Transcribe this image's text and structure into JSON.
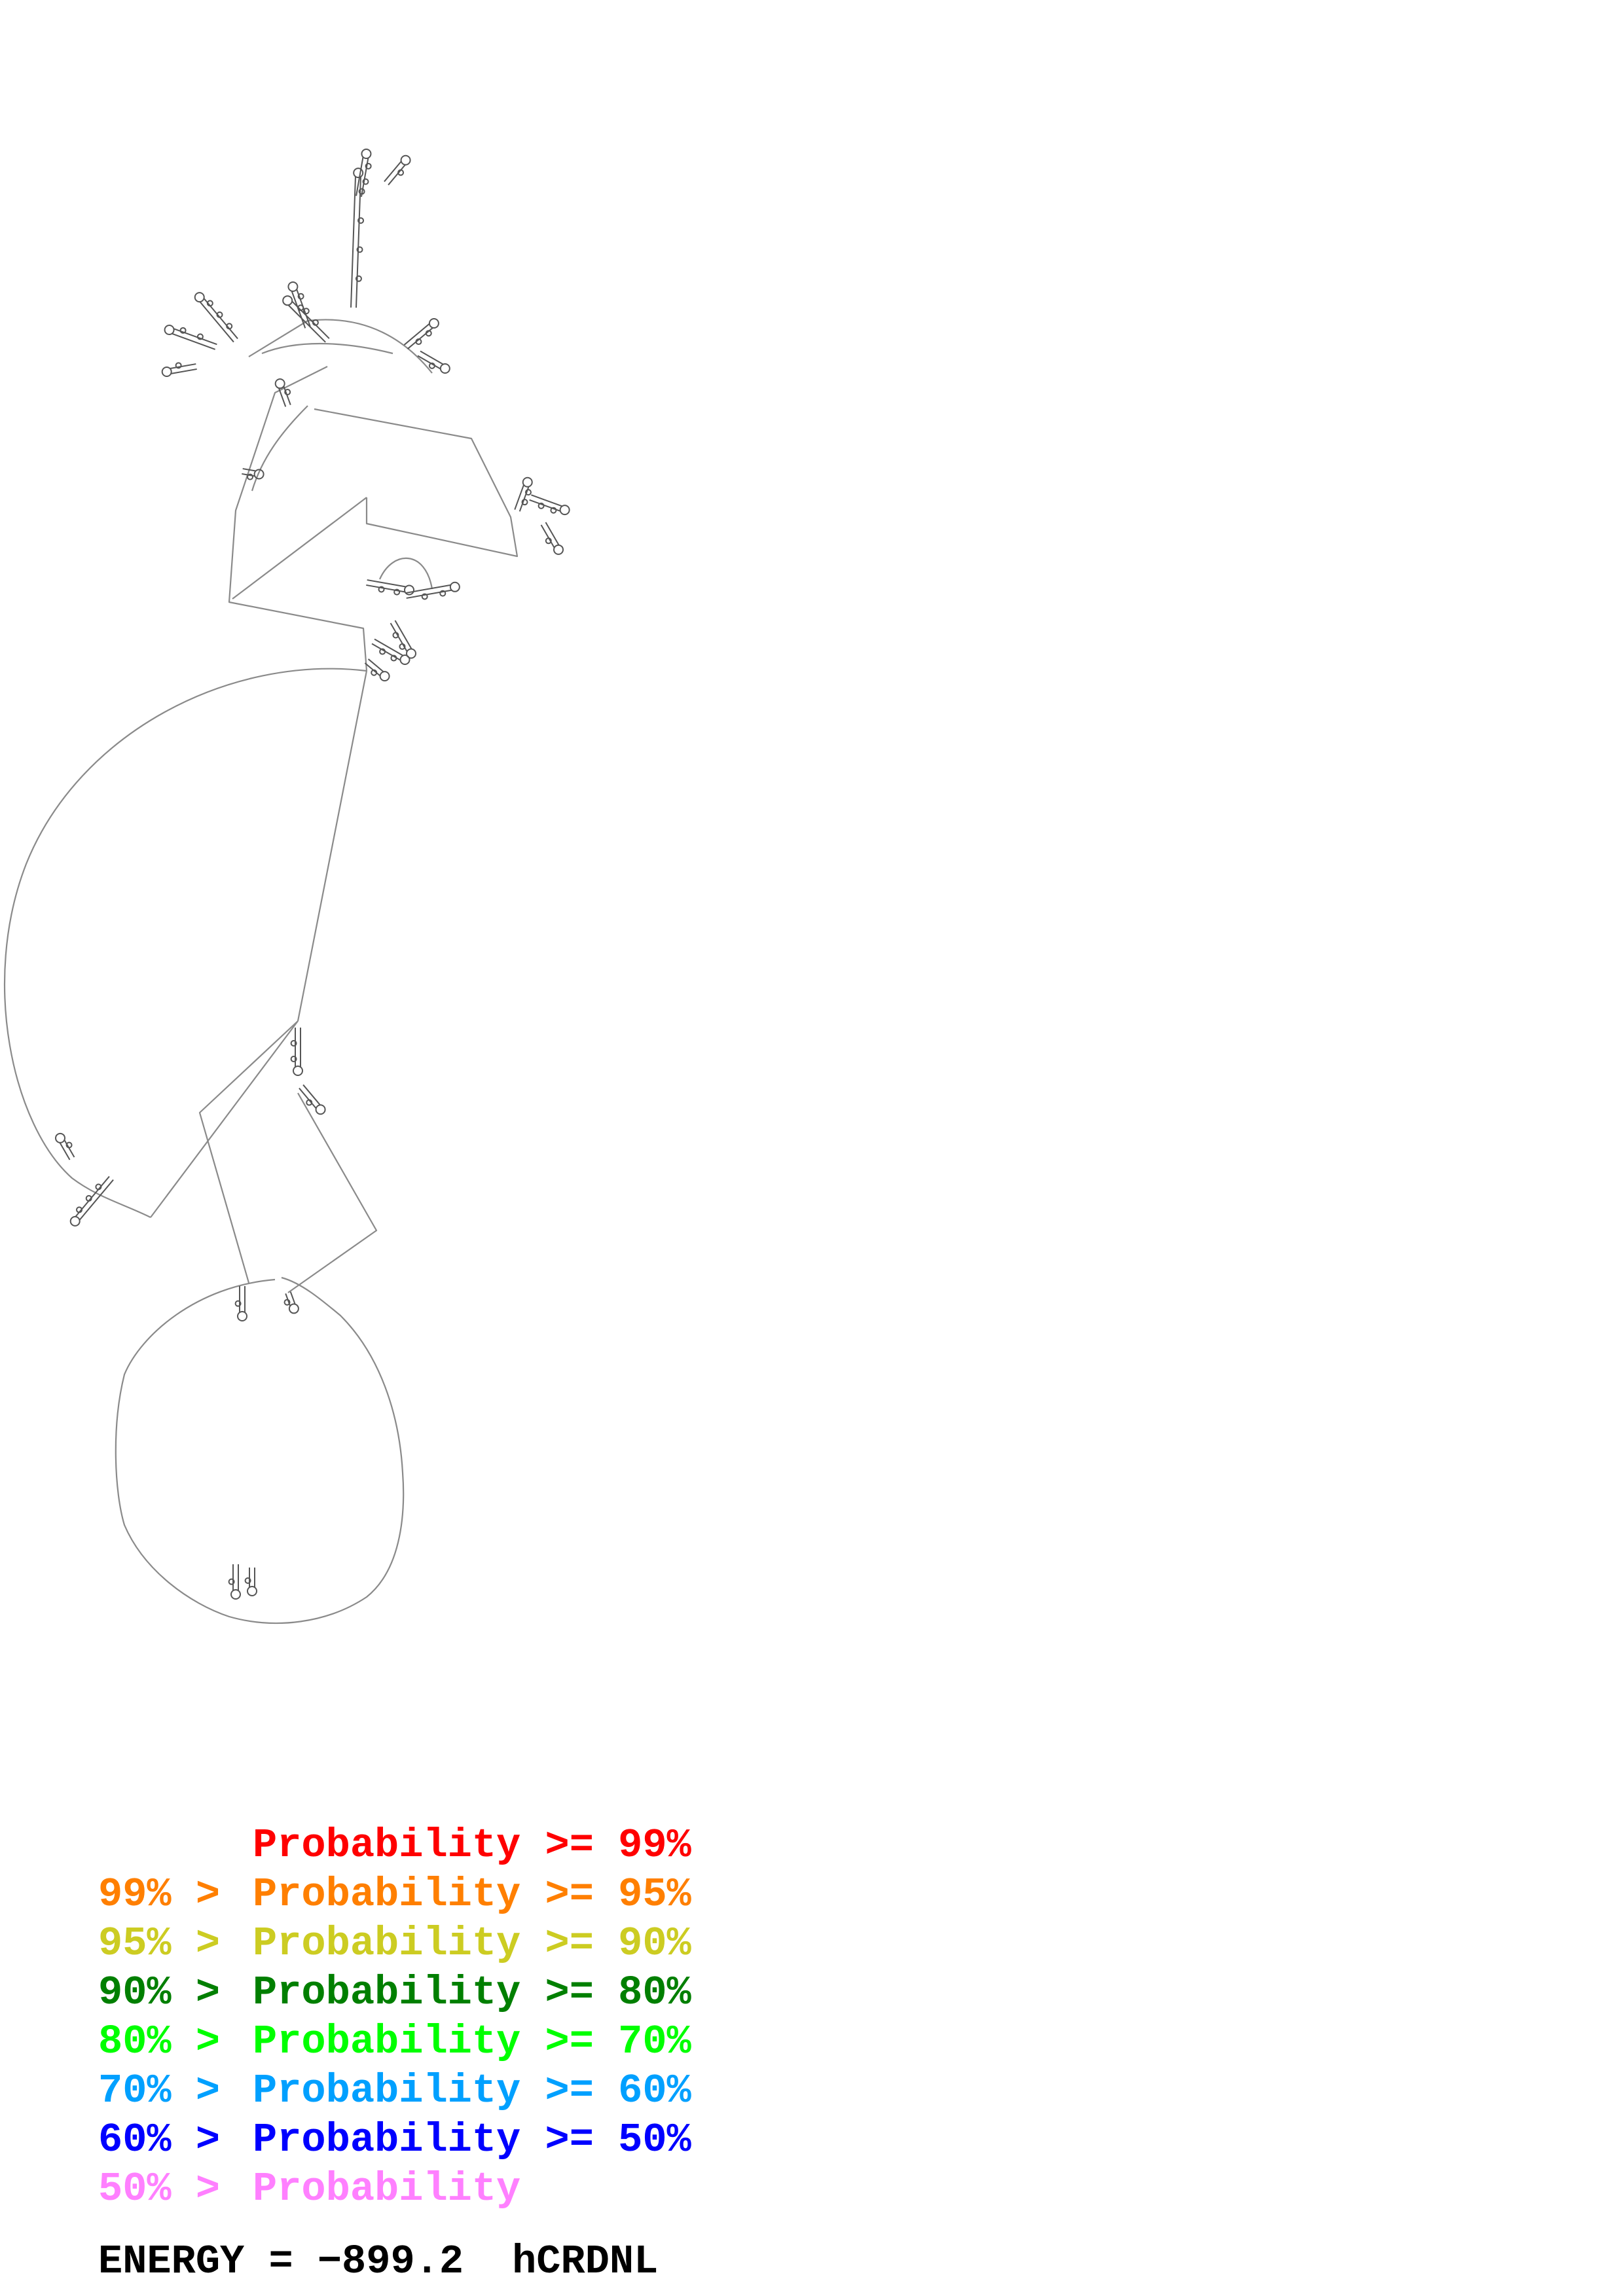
{
  "legend": {
    "rows": [
      {
        "prefix": "",
        "label": "Probability",
        "suffix": ">= 99%",
        "color": "#ff0000"
      },
      {
        "prefix": "99% >",
        "label": "Probability",
        "suffix": ">= 95%",
        "color": "#ff7f00"
      },
      {
        "prefix": "95% >",
        "label": "Probability",
        "suffix": ">= 90%",
        "color": "#cccc22"
      },
      {
        "prefix": "90% >",
        "label": "Probability",
        "suffix": ">= 80%",
        "color": "#007f00"
      },
      {
        "prefix": "80% >",
        "label": "Probability",
        "suffix": ">= 70%",
        "color": "#00ff00"
      },
      {
        "prefix": "70% >",
        "label": "Probability",
        "suffix": ">= 60%",
        "color": "#00a0ff"
      },
      {
        "prefix": "60% >",
        "label": "Probability",
        "suffix": ">= 50%",
        "color": "#0000ff"
      },
      {
        "prefix": "50% >",
        "label": "Probability",
        "suffix": "",
        "color": "#ff80ff"
      }
    ]
  },
  "footer": {
    "energy_label": "ENERGY = −899.2",
    "sequence_name": "hCRDNL"
  },
  "structure": {
    "line_color": "#888888",
    "base_color": "#555555"
  }
}
